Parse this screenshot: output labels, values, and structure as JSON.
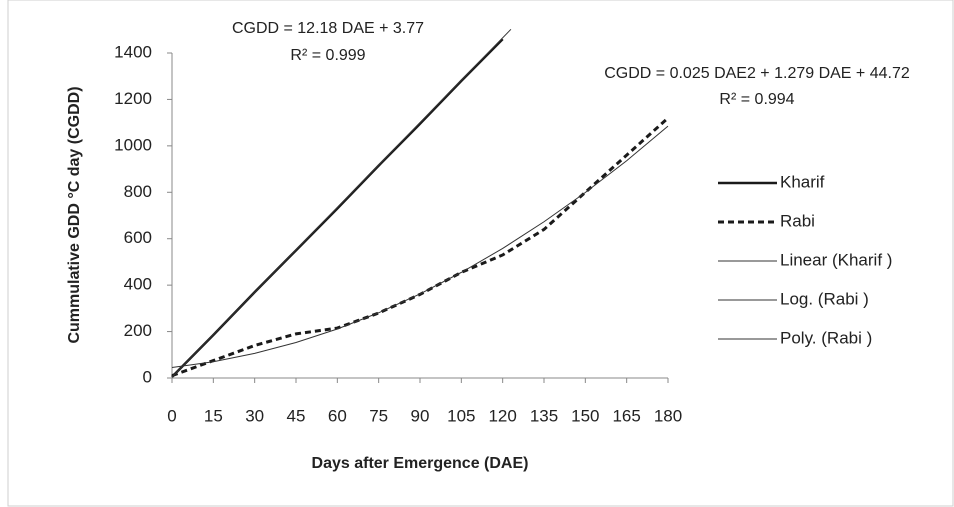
{
  "chart_data": {
    "type": "line",
    "x_label": "Days after Emergence (DAE)",
    "y_label": "Cummulative GDD °C day (CGDD)",
    "annotations": [
      "CGDD = 12.18 DAE + 3.77",
      "R² = 0.999",
      "CGDD  = 0.025 DAE2 + 1.279 DAE + 44.72",
      "R² = 0.994"
    ],
    "xlim": [
      0,
      180
    ],
    "xticks": [
      0,
      15,
      30,
      45,
      60,
      75,
      90,
      105,
      120,
      135,
      150,
      165,
      180
    ],
    "ylim": [
      0,
      1400
    ],
    "yticks": [
      0,
      200,
      400,
      600,
      800,
      1000,
      1200,
      1400
    ],
    "series": [
      {
        "name": "Kharif",
        "color": "#1a1a1a",
        "x": [
          0,
          15,
          30,
          45,
          60,
          75,
          90,
          105,
          120
        ],
        "values": [
          5,
          185,
          370,
          550,
          730,
          915,
          1095,
          1280,
          1460
        ]
      },
      {
        "name": "Rabi",
        "color": "#1a1a1a",
        "x": [
          0,
          15,
          30,
          45,
          60,
          75,
          90,
          105,
          120,
          135,
          150,
          165,
          180
        ],
        "values": [
          10,
          75,
          140,
          190,
          215,
          280,
          360,
          455,
          530,
          640,
          800,
          960,
          1120
        ]
      },
      {
        "name": "Linear (Kharif )",
        "color": "#333333",
        "x": [
          0,
          123
        ],
        "values": [
          4,
          1502
        ]
      },
      {
        "name": "Log. (Rabi )",
        "color": "#333333",
        "x": [
          0
        ],
        "values": [
          null
        ]
      },
      {
        "name": "Poly. (Rabi )",
        "color": "#333333",
        "x": [
          0,
          15,
          30,
          45,
          60,
          75,
          90,
          105,
          120,
          135,
          150,
          165,
          180
        ],
        "values": [
          45,
          70,
          106,
          153,
          211,
          281,
          362,
          455,
          558,
          673,
          799,
          936,
          1085
        ]
      }
    ]
  }
}
